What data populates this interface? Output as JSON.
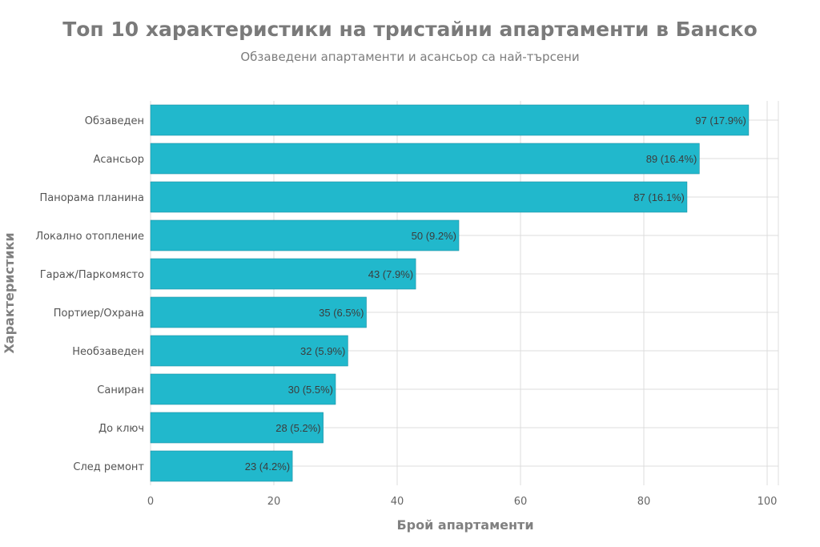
{
  "chart_data": {
    "type": "bar",
    "orientation": "horizontal",
    "title": "Топ 10 характеристики на тристайни апартаменти в Банско",
    "subtitle": "Обзаведени апартаменти и асансьор са най-търсени",
    "xlabel": "Брой апартаменти",
    "ylabel": "Характеристики",
    "xlim": [
      0,
      102
    ],
    "xticks": [
      "0",
      "20",
      "40",
      "60",
      "80",
      "100"
    ],
    "grid": true,
    "bar_color": "#21b8cc",
    "categories": [
      "Обзаведен",
      "Асансьор",
      "Панорама планина",
      "Локално отопление",
      "Гараж/Паркомясто",
      "Портиер/Охрана",
      "Необзаведен",
      "Саниран",
      "До ключ",
      "След ремонт"
    ],
    "values": [
      97,
      89,
      87,
      50,
      43,
      35,
      32,
      30,
      28,
      23
    ],
    "value_labels": [
      "97 (17.9%)",
      "89 (16.4%)",
      "87 (16.1%)",
      "50 (9.2%)",
      "43 (7.9%)",
      "35 (6.5%)",
      "32 (5.9%)",
      "30 (5.5%)",
      "28 (5.2%)",
      "23 (4.2%)"
    ]
  }
}
